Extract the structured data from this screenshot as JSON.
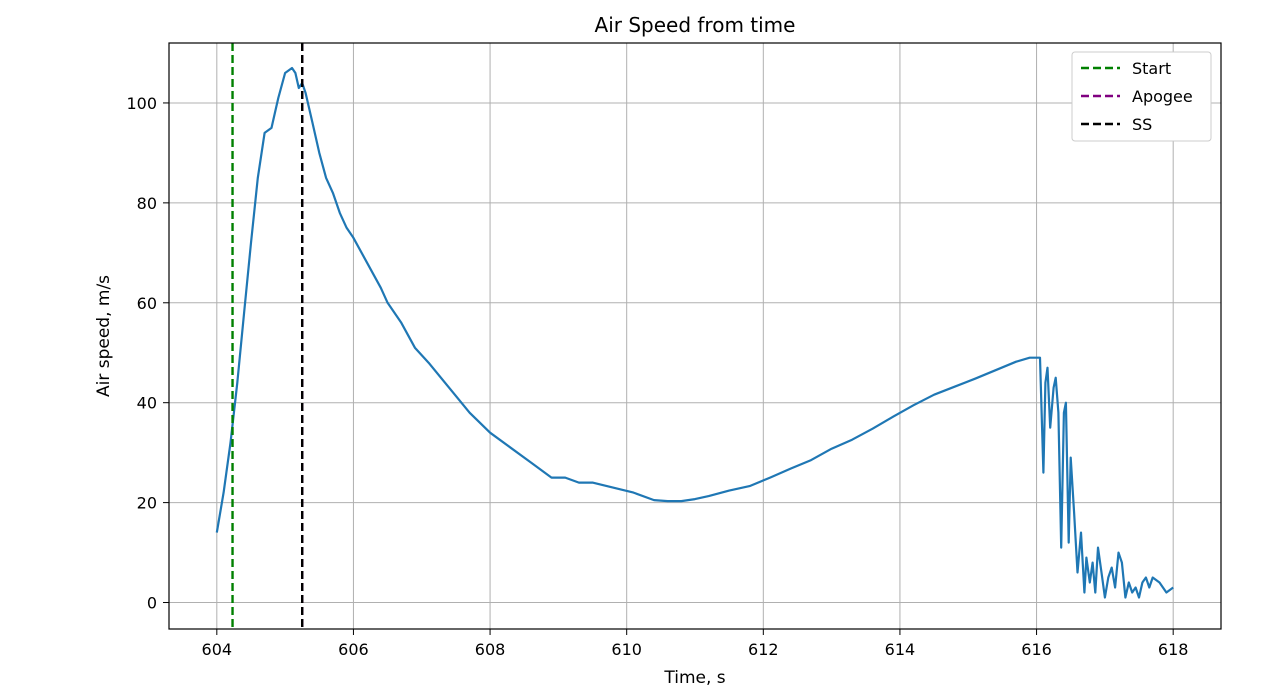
{
  "chart_data": {
    "type": "line",
    "title": "Air Speed from time",
    "xlabel": "Time, s",
    "ylabel": "Air speed, m/s",
    "xlim": [
      603.3,
      618.7
    ],
    "ylim": [
      -5.3,
      112
    ],
    "xticks": [
      604,
      606,
      608,
      610,
      612,
      614,
      616,
      618
    ],
    "yticks": [
      0,
      20,
      40,
      60,
      80,
      100
    ],
    "grid": true,
    "legend_position": "top-right",
    "series": [
      {
        "name": "",
        "color": "#1f77b4",
        "x": [
          604.0,
          604.1,
          604.2,
          604.3,
          604.4,
          604.5,
          604.6,
          604.7,
          604.8,
          604.85,
          604.9,
          605.0,
          605.1,
          605.15,
          605.2,
          605.25,
          605.3,
          605.4,
          605.5,
          605.6,
          605.7,
          605.8,
          605.9,
          606.0,
          606.2,
          606.4,
          606.5,
          606.7,
          606.9,
          607.1,
          607.4,
          607.7,
          608.0,
          608.3,
          608.6,
          608.9,
          609.1,
          609.3,
          609.5,
          609.8,
          610.1,
          610.4,
          610.6,
          610.8,
          611.0,
          611.2,
          611.5,
          611.8,
          612.1,
          612.4,
          612.7,
          613.0,
          613.3,
          613.6,
          613.9,
          614.2,
          614.5,
          614.8,
          615.1,
          615.4,
          615.7,
          615.9,
          616.05,
          616.1,
          616.13,
          616.16,
          616.2,
          616.25,
          616.28,
          616.32,
          616.36,
          616.4,
          616.43,
          616.47,
          616.5,
          616.55,
          616.6,
          616.65,
          616.7,
          616.73,
          616.78,
          616.82,
          616.86,
          616.9,
          616.95,
          617.0,
          617.05,
          617.1,
          617.15,
          617.2,
          617.25,
          617.3,
          617.35,
          617.4,
          617.45,
          617.5,
          617.55,
          617.6,
          617.65,
          617.7,
          617.8,
          617.9,
          618.0
        ],
        "y": [
          14,
          22,
          32,
          44,
          58,
          72,
          85,
          94,
          95,
          98,
          101,
          106,
          107,
          106,
          103,
          104,
          102,
          96,
          90,
          85,
          82,
          78,
          75,
          73,
          68,
          63,
          60,
          56,
          51,
          48,
          43,
          38,
          34,
          31,
          28,
          25,
          25,
          24,
          24,
          23,
          22,
          20.5,
          20.3,
          20.3,
          20.7,
          21.3,
          22.4,
          23.3,
          25,
          26.8,
          28.5,
          30.8,
          32.6,
          34.8,
          37.2,
          39.5,
          41.6,
          43.2,
          44.8,
          46.5,
          48.2,
          49,
          49,
          26,
          44,
          47,
          35,
          43,
          45,
          38,
          11,
          38,
          40,
          12,
          29,
          18,
          6,
          14,
          2,
          9,
          4,
          8,
          2,
          11,
          6,
          1,
          5,
          7,
          3,
          10,
          8,
          1,
          4,
          2,
          3,
          1,
          4,
          5,
          3,
          5,
          4,
          2,
          3
        ]
      }
    ],
    "vlines": [
      {
        "name": "Start",
        "x": 604.23,
        "color": "#008000"
      },
      {
        "name": "Apogee",
        "x": 605.25,
        "color": "#800080"
      },
      {
        "name": "SS",
        "x": 605.25,
        "color": "#000000"
      }
    ]
  }
}
